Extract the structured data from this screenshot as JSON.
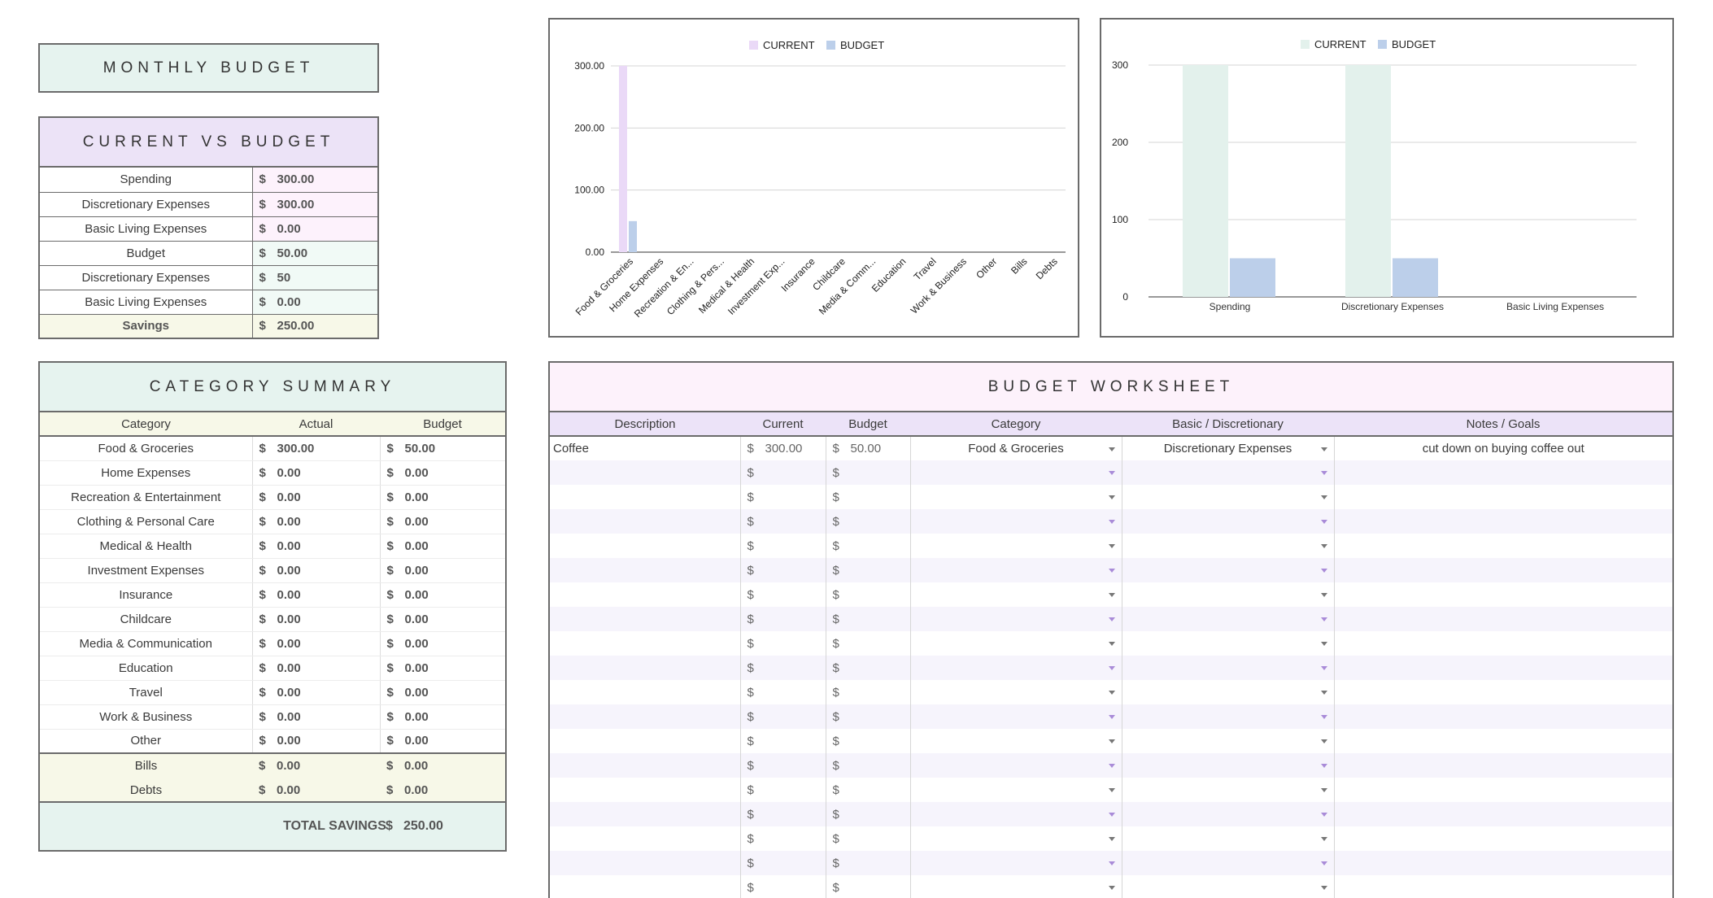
{
  "monthly_title": "MONTHLY BUDGET",
  "cvb": {
    "title": "CURRENT VS BUDGET",
    "rows": [
      {
        "label": "Spending",
        "cur": "$",
        "value": "300.00",
        "bg": "#fdf2fc"
      },
      {
        "label": "Discretionary Expenses",
        "cur": "$",
        "value": "300.00",
        "bg": "#fdf2fc"
      },
      {
        "label": "Basic Living Expenses",
        "cur": "$",
        "value": "0.00",
        "bg": "#fdf2fc"
      },
      {
        "label": "Budget",
        "cur": "$",
        "value": "50.00",
        "bg": "#f1faf6"
      },
      {
        "label": "Discretionary Expenses",
        "cur": "$",
        "value": "50",
        "bg": "#f1faf6"
      },
      {
        "label": "Basic Living Expenses",
        "cur": "$",
        "value": "0.00",
        "bg": "#f1faf6"
      }
    ],
    "savings_label": "Savings",
    "savings_cur": "$",
    "savings_value": "250.00"
  },
  "chart1": {
    "legend": [
      "CURRENT",
      "BUDGET"
    ],
    "ticks": [
      "300.00",
      "200.00",
      "100.00",
      "0.00"
    ]
  },
  "chart2": {
    "legend": [
      "CURRENT",
      "BUDGET"
    ],
    "ticks": [
      "300",
      "200",
      "100",
      "0"
    ]
  },
  "chart_data": [
    {
      "type": "bar",
      "title": "",
      "categories": [
        "Food & Groceries",
        "Home Expenses",
        "Recreation & En...",
        "Clothing & Pers...",
        "Medical & Health",
        "Investment Exp...",
        "Insurance",
        "Childcare",
        "Media & Comm...",
        "Education",
        "Travel",
        "Work & Business",
        "Other",
        "Bills",
        "Debts"
      ],
      "series": [
        {
          "name": "CURRENT",
          "values": [
            300,
            0,
            0,
            0,
            0,
            0,
            0,
            0,
            0,
            0,
            0,
            0,
            0,
            0,
            0
          ],
          "color": "#ead9f7"
        },
        {
          "name": "BUDGET",
          "values": [
            50,
            0,
            0,
            0,
            0,
            0,
            0,
            0,
            0,
            0,
            0,
            0,
            0,
            0,
            0
          ],
          "color": "#bccfea"
        }
      ],
      "ylim": [
        0,
        300
      ],
      "grid": true,
      "legend": "top"
    },
    {
      "type": "bar",
      "title": "",
      "categories": [
        "Spending",
        "Discretionary Expenses",
        "Basic Living Expenses"
      ],
      "series": [
        {
          "name": "CURRENT",
          "values": [
            300,
            300,
            0
          ],
          "color": "#e3f1ec"
        },
        {
          "name": "BUDGET",
          "values": [
            50,
            50,
            0
          ],
          "color": "#bccfea"
        }
      ],
      "ylim": [
        0,
        300
      ],
      "grid": true,
      "legend": "top"
    }
  ],
  "summary": {
    "title": "CATEGORY SUMMARY",
    "headers": [
      "Category",
      "Actual",
      "Budget"
    ],
    "rows": [
      {
        "cat": "Food & Groceries",
        "actual": "300.00",
        "budget": "50.00"
      },
      {
        "cat": "Home Expenses",
        "actual": "0.00",
        "budget": "0.00"
      },
      {
        "cat": "Recreation & Entertainment",
        "actual": "0.00",
        "budget": "0.00"
      },
      {
        "cat": "Clothing & Personal Care",
        "actual": "0.00",
        "budget": "0.00"
      },
      {
        "cat": "Medical & Health",
        "actual": "0.00",
        "budget": "0.00"
      },
      {
        "cat": "Investment Expenses",
        "actual": "0.00",
        "budget": "0.00"
      },
      {
        "cat": "Insurance",
        "actual": "0.00",
        "budget": "0.00"
      },
      {
        "cat": "Childcare",
        "actual": "0.00",
        "budget": "0.00"
      },
      {
        "cat": "Media & Communication",
        "actual": "0.00",
        "budget": "0.00"
      },
      {
        "cat": "Education",
        "actual": "0.00",
        "budget": "0.00"
      },
      {
        "cat": "Travel",
        "actual": "0.00",
        "budget": "0.00"
      },
      {
        "cat": "Work & Business",
        "actual": "0.00",
        "budget": "0.00"
      },
      {
        "cat": "Other",
        "actual": "0.00",
        "budget": "0.00"
      }
    ],
    "extra_rows": [
      {
        "cat": "Bills",
        "actual": "0.00",
        "budget": "0.00"
      },
      {
        "cat": "Debts",
        "actual": "0.00",
        "budget": "0.00"
      }
    ],
    "cur": "$",
    "total_label": "TOTAL SAVINGS",
    "total_cur": "$",
    "total_value": "250.00"
  },
  "worksheet": {
    "title": "BUDGET WORKSHEET",
    "headers": [
      "Description",
      "Current",
      "Budget",
      "Category",
      "Basic / Discretionary",
      "Notes / Goals"
    ],
    "cur": "$",
    "rows": [
      {
        "desc": "Coffee",
        "current": "300.00",
        "budget": "50.00",
        "category": "Food & Groceries",
        "type": "Discretionary Expenses",
        "notes": "cut down on buying coffee out"
      },
      {
        "desc": "",
        "current": "",
        "budget": "",
        "category": "",
        "type": "",
        "notes": ""
      },
      {
        "desc": "",
        "current": "",
        "budget": "",
        "category": "",
        "type": "",
        "notes": ""
      },
      {
        "desc": "",
        "current": "",
        "budget": "",
        "category": "",
        "type": "",
        "notes": ""
      },
      {
        "desc": "",
        "current": "",
        "budget": "",
        "category": "",
        "type": "",
        "notes": ""
      },
      {
        "desc": "",
        "current": "",
        "budget": "",
        "category": "",
        "type": "",
        "notes": ""
      },
      {
        "desc": "",
        "current": "",
        "budget": "",
        "category": "",
        "type": "",
        "notes": ""
      },
      {
        "desc": "",
        "current": "",
        "budget": "",
        "category": "",
        "type": "",
        "notes": ""
      },
      {
        "desc": "",
        "current": "",
        "budget": "",
        "category": "",
        "type": "",
        "notes": ""
      },
      {
        "desc": "",
        "current": "",
        "budget": "",
        "category": "",
        "type": "",
        "notes": ""
      },
      {
        "desc": "",
        "current": "",
        "budget": "",
        "category": "",
        "type": "",
        "notes": ""
      },
      {
        "desc": "",
        "current": "",
        "budget": "",
        "category": "",
        "type": "",
        "notes": ""
      },
      {
        "desc": "",
        "current": "",
        "budget": "",
        "category": "",
        "type": "",
        "notes": ""
      },
      {
        "desc": "",
        "current": "",
        "budget": "",
        "category": "",
        "type": "",
        "notes": ""
      },
      {
        "desc": "",
        "current": "",
        "budget": "",
        "category": "",
        "type": "",
        "notes": ""
      },
      {
        "desc": "",
        "current": "",
        "budget": "",
        "category": "",
        "type": "",
        "notes": ""
      },
      {
        "desc": "",
        "current": "",
        "budget": "",
        "category": "",
        "type": "",
        "notes": ""
      },
      {
        "desc": "",
        "current": "",
        "budget": "",
        "category": "",
        "type": "",
        "notes": ""
      },
      {
        "desc": "",
        "current": "",
        "budget": "",
        "category": "",
        "type": "",
        "notes": ""
      }
    ]
  },
  "colors": {
    "mint": "#e6f3ef",
    "lavender": "#ece3f7",
    "pink_light": "#fdf2fc",
    "mint_light": "#f1faf6",
    "cream": "#f7f8e8",
    "ws_header": "#fdf2fb",
    "ws_col_header": "#ece3f8",
    "ws_alt_row": "#f6f4fc"
  }
}
